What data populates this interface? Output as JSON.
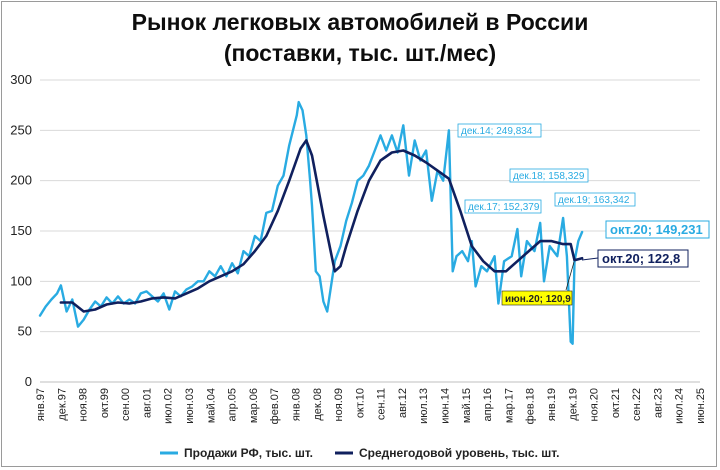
{
  "title_line1": "Рынок легковых автомобилей в России",
  "title_line2": "(поставки, тыс. шт./мес)",
  "colors": {
    "sales": "#29abe2",
    "average": "#10205e",
    "grid": "#d9d9d9",
    "callout_yellow": "#ffff00"
  },
  "legend": {
    "sales": "Продажи РФ, тыс. шт.",
    "average": "Среднегодовой уровень, тыс. шт."
  },
  "callouts": {
    "dec14": "дек.14; 249,834",
    "dec17": "дек.17; 152,379",
    "dec18": "дек.18; 158,329",
    "dec19": "дек.19; 163,342",
    "oct20_sales": "окт.20; 149,231",
    "oct20_avg": "окт.20;  122,8",
    "jun20": "июн.20;  120,9"
  },
  "chart_data": {
    "type": "line",
    "title": "Рынок легковых автомобилей в России (поставки, тыс. шт./мес)",
    "x_unit": "month",
    "x_range": [
      "1997-01",
      "2025-12"
    ],
    "ylim": [
      0,
      300
    ],
    "yticks": [
      0,
      50,
      100,
      150,
      200,
      250,
      300
    ],
    "xtick_labels": [
      "янв.97",
      "дек.97",
      "ноя.98",
      "окт.99",
      "сен.00",
      "авг.01",
      "июл.02",
      "июн.03",
      "май.04",
      "апр.05",
      "мар.06",
      "фев.07",
      "янв.08",
      "дек.08",
      "ноя.09",
      "окт.10",
      "сен.11",
      "авг.12",
      "июл.13",
      "июн.14",
      "май.15",
      "апр.16",
      "мар.17",
      "фев.18",
      "янв.19",
      "дек.19",
      "ноя.20",
      "окт.21",
      "сен.22",
      "авг.23",
      "июл.24",
      "июн.25"
    ],
    "grid": "horizontal",
    "legend_position": "bottom",
    "series": [
      {
        "name": "Продажи РФ, тыс. шт.",
        "points": [
          [
            "1997-01",
            66
          ],
          [
            "1997-04",
            75
          ],
          [
            "1997-07",
            82
          ],
          [
            "1997-10",
            88
          ],
          [
            "1997-12",
            96
          ],
          [
            "1998-03",
            70
          ],
          [
            "1998-06",
            82
          ],
          [
            "1998-09",
            55
          ],
          [
            "1998-12",
            62
          ],
          [
            "1999-03",
            72
          ],
          [
            "1999-06",
            80
          ],
          [
            "1999-09",
            75
          ],
          [
            "1999-12",
            84
          ],
          [
            "2000-03",
            78
          ],
          [
            "2000-06",
            85
          ],
          [
            "2000-09",
            78
          ],
          [
            "2000-12",
            82
          ],
          [
            "2001-03",
            78
          ],
          [
            "2001-06",
            88
          ],
          [
            "2001-09",
            90
          ],
          [
            "2001-12",
            85
          ],
          [
            "2002-03",
            80
          ],
          [
            "2002-06",
            88
          ],
          [
            "2002-09",
            72
          ],
          [
            "2002-12",
            90
          ],
          [
            "2003-03",
            85
          ],
          [
            "2003-06",
            92
          ],
          [
            "2003-09",
            95
          ],
          [
            "2003-12",
            100
          ],
          [
            "2004-03",
            100
          ],
          [
            "2004-06",
            110
          ],
          [
            "2004-09",
            105
          ],
          [
            "2004-12",
            115
          ],
          [
            "2005-03",
            105
          ],
          [
            "2005-06",
            118
          ],
          [
            "2005-09",
            108
          ],
          [
            "2005-12",
            130
          ],
          [
            "2006-03",
            125
          ],
          [
            "2006-06",
            145
          ],
          [
            "2006-09",
            140
          ],
          [
            "2006-12",
            168
          ],
          [
            "2007-03",
            170
          ],
          [
            "2007-06",
            195
          ],
          [
            "2007-09",
            205
          ],
          [
            "2007-12",
            235
          ],
          [
            "2008-02",
            250
          ],
          [
            "2008-04",
            265
          ],
          [
            "2008-05",
            278
          ],
          [
            "2008-07",
            270
          ],
          [
            "2008-09",
            245
          ],
          [
            "2008-11",
            200
          ],
          [
            "2008-12",
            175
          ],
          [
            "2009-02",
            110
          ],
          [
            "2009-04",
            105
          ],
          [
            "2009-06",
            80
          ],
          [
            "2009-08",
            70
          ],
          [
            "2009-10",
            95
          ],
          [
            "2009-12",
            120
          ],
          [
            "2010-03",
            135
          ],
          [
            "2010-06",
            160
          ],
          [
            "2010-09",
            178
          ],
          [
            "2010-12",
            200
          ],
          [
            "2011-03",
            205
          ],
          [
            "2011-06",
            215
          ],
          [
            "2011-09",
            230
          ],
          [
            "2011-12",
            245
          ],
          [
            "2012-03",
            230
          ],
          [
            "2012-06",
            245
          ],
          [
            "2012-09",
            228
          ],
          [
            "2012-12",
            255
          ],
          [
            "2013-03",
            205
          ],
          [
            "2013-06",
            240
          ],
          [
            "2013-09",
            220
          ],
          [
            "2013-12",
            230
          ],
          [
            "2014-03",
            180
          ],
          [
            "2014-06",
            210
          ],
          [
            "2014-09",
            200
          ],
          [
            "2014-12",
            250
          ],
          [
            "2015-02",
            110
          ],
          [
            "2015-04",
            125
          ],
          [
            "2015-07",
            130
          ],
          [
            "2015-10",
            120
          ],
          [
            "2015-12",
            140
          ],
          [
            "2016-02",
            95
          ],
          [
            "2016-05",
            115
          ],
          [
            "2016-08",
            110
          ],
          [
            "2016-12",
            125
          ],
          [
            "2017-02",
            78
          ],
          [
            "2017-05",
            120
          ],
          [
            "2017-09",
            125
          ],
          [
            "2017-12",
            152
          ],
          [
            "2018-02",
            105
          ],
          [
            "2018-05",
            140
          ],
          [
            "2018-09",
            130
          ],
          [
            "2018-12",
            158
          ],
          [
            "2019-02",
            100
          ],
          [
            "2019-05",
            135
          ],
          [
            "2019-09",
            125
          ],
          [
            "2019-12",
            163
          ],
          [
            "2020-02",
            125
          ],
          [
            "2020-04",
            40
          ],
          [
            "2020-05",
            38
          ],
          [
            "2020-06",
            120
          ],
          [
            "2020-08",
            140
          ],
          [
            "2020-10",
            149
          ]
        ]
      },
      {
        "name": "Среднегодовой уровень, тыс. шт.",
        "points": [
          [
            "1997-12",
            79
          ],
          [
            "1998-06",
            79
          ],
          [
            "1998-12",
            70
          ],
          [
            "1999-06",
            72
          ],
          [
            "1999-12",
            77
          ],
          [
            "2000-06",
            79
          ],
          [
            "2000-12",
            78
          ],
          [
            "2001-06",
            80
          ],
          [
            "2001-12",
            83
          ],
          [
            "2002-06",
            84
          ],
          [
            "2002-12",
            83
          ],
          [
            "2003-06",
            88
          ],
          [
            "2003-12",
            93
          ],
          [
            "2004-06",
            100
          ],
          [
            "2004-12",
            105
          ],
          [
            "2005-06",
            110
          ],
          [
            "2005-12",
            117
          ],
          [
            "2006-06",
            130
          ],
          [
            "2006-12",
            145
          ],
          [
            "2007-06",
            170
          ],
          [
            "2007-12",
            200
          ],
          [
            "2008-06",
            232
          ],
          [
            "2008-09",
            240
          ],
          [
            "2008-12",
            225
          ],
          [
            "2009-06",
            165
          ],
          [
            "2009-12",
            110
          ],
          [
            "2010-03",
            115
          ],
          [
            "2010-06",
            135
          ],
          [
            "2010-12",
            170
          ],
          [
            "2011-06",
            200
          ],
          [
            "2011-12",
            220
          ],
          [
            "2012-06",
            228
          ],
          [
            "2012-12",
            230
          ],
          [
            "2013-06",
            225
          ],
          [
            "2013-12",
            218
          ],
          [
            "2014-06",
            210
          ],
          [
            "2014-12",
            202
          ],
          [
            "2015-06",
            170
          ],
          [
            "2015-12",
            135
          ],
          [
            "2016-06",
            120
          ],
          [
            "2016-12",
            110
          ],
          [
            "2017-06",
            110
          ],
          [
            "2017-12",
            120
          ],
          [
            "2018-06",
            130
          ],
          [
            "2018-12",
            140
          ],
          [
            "2019-06",
            140
          ],
          [
            "2019-12",
            137
          ],
          [
            "2020-04",
            137
          ],
          [
            "2020-06",
            121
          ],
          [
            "2020-10",
            123
          ]
        ]
      }
    ]
  }
}
